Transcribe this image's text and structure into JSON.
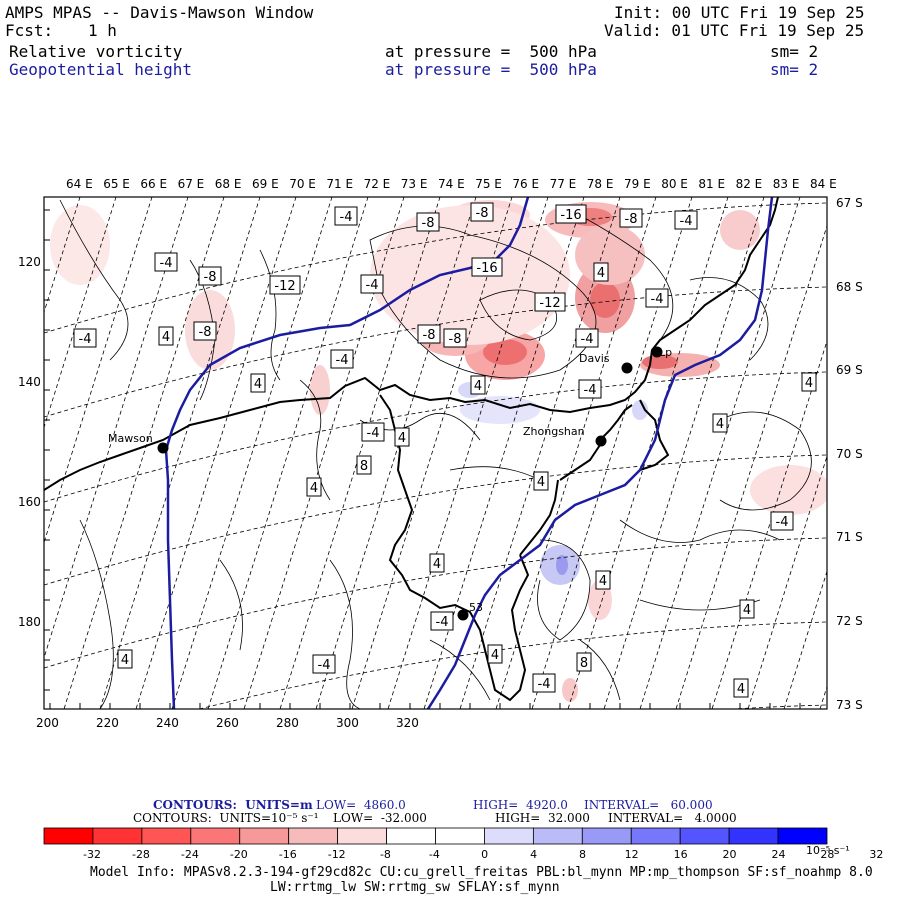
{
  "header": {
    "title": "AMPS MPAS -- Davis-Mawson Window",
    "fcst_label": "Fcst:",
    "fcst_value": "1 h",
    "init": "Init: 00 UTC Fri 19 Sep 25",
    "valid": "Valid: 01 UTC Fri 19 Sep 25",
    "field1": {
      "name": "Relative vorticity",
      "level": "at pressure =  500 hPa",
      "sm": "sm= 2"
    },
    "field2": {
      "name": "Geopotential height",
      "level": "at pressure =  500 hPa",
      "sm": "sm= 2"
    }
  },
  "map": {
    "lon_labels": [
      "64 E",
      "65 E",
      "66 E",
      "67 E",
      "68 E",
      "69 E",
      "70 E",
      "71 E",
      "72 E",
      "73 E",
      "74 E",
      "75 E",
      "76 E",
      "77 E",
      "78 E",
      "79 E",
      "80 E",
      "81 E",
      "82 E",
      "83 E",
      "84 E"
    ],
    "lat_labels": [
      "67 S",
      "68 S",
      "69 S",
      "70 S",
      "71 S",
      "72 S",
      "73 S"
    ],
    "x_ticks": [
      "200",
      "220",
      "240",
      "260",
      "280",
      "300",
      "320"
    ],
    "y_ticks": [
      "120",
      "140",
      "160",
      "180"
    ],
    "stations": [
      {
        "name": "Mawson"
      },
      {
        "name": "Davis"
      },
      {
        "name": "Zhongshan"
      },
      {
        "name": "Lp"
      },
      {
        "name": "53"
      }
    ],
    "contour_labels": [
      "-4",
      "-8",
      "-8",
      "-16",
      "-8",
      "-4",
      "-4",
      "-8",
      "-16",
      "-12",
      "4",
      "-4",
      "-4",
      "-8",
      "-12",
      "-8",
      "-4",
      "-4",
      "-8",
      "-4",
      "4",
      "4",
      "4",
      "-4",
      "-4",
      "4",
      "8",
      "4",
      "4",
      "4",
      "-4",
      "4",
      "4",
      "4",
      "-4",
      "4",
      "4",
      "8",
      "-4",
      "4",
      "4",
      "-4"
    ],
    "colors": {
      "height_contour": "#1c1ca0",
      "coast": "#000000"
    }
  },
  "footer": {
    "line1": {
      "label": "CONTOURS:  UNITS=m",
      "low": "LOW=  4860.0",
      "high": "HIGH=  4920.0",
      "interval": "INTERVAL=   60.000"
    },
    "line2": {
      "label": "CONTOURS:  UNITS=10⁻⁵ s⁻¹",
      "low": "LOW=  -32.000",
      "high": "HIGH=  32.000",
      "interval": "INTERVAL=   4.0000"
    },
    "colorbar": {
      "colors": [
        "#ff0000",
        "#ff3333",
        "#ff5555",
        "#fb7777",
        "#f79999",
        "#f7bbbb",
        "#fbdddd",
        "#ffffff",
        "#ffffff",
        "#ddddfb",
        "#bbbbf7",
        "#9999f7",
        "#7777fb",
        "#5555ff",
        "#3333ff",
        "#0000ff"
      ],
      "labels": [
        "-32",
        "-28",
        "-24",
        "-20",
        "-16",
        "-12",
        "-8",
        "-4",
        "0",
        "4",
        "8",
        "12",
        "16",
        "20",
        "24",
        "28",
        "32"
      ],
      "unit": "10⁻⁵ s⁻¹"
    },
    "model_info": "Model Info: MPASv8.2.3-194-gf29cd82c CU:cu_grell_freitas PBL:bl_mynn MP:mp_thompson SF:sf_noahmp 8.0",
    "model_info2": "LW:rrtmg_lw SW:rrtmg_sw SFLAY:sf_mynn"
  }
}
